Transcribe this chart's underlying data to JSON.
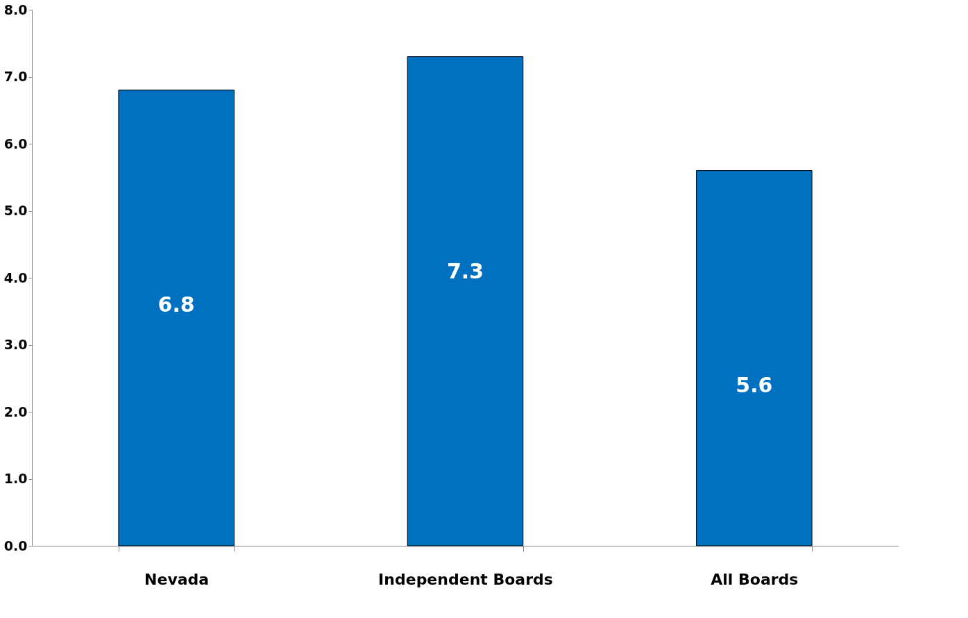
{
  "chart_data": {
    "type": "bar",
    "categories": [
      "Nevada",
      "Independent Boards",
      "All Boards"
    ],
    "values": [
      6.8,
      7.3,
      5.6
    ],
    "color": "#0070c0",
    "data_labels": true,
    "grid": false,
    "ylim": [
      0,
      8
    ],
    "yticks": [
      {
        "value": 0,
        "label": "0.0"
      },
      {
        "value": 1,
        "label": "1.0"
      },
      {
        "value": 2,
        "label": "2.0"
      },
      {
        "value": 3,
        "label": "3.0"
      },
      {
        "value": 4,
        "label": "4.0"
      },
      {
        "value": 5,
        "label": "5.0"
      },
      {
        "value": 6,
        "label": "6.0"
      },
      {
        "value": 7,
        "label": "7.0"
      },
      {
        "value": 8,
        "label": "8.0"
      }
    ]
  }
}
